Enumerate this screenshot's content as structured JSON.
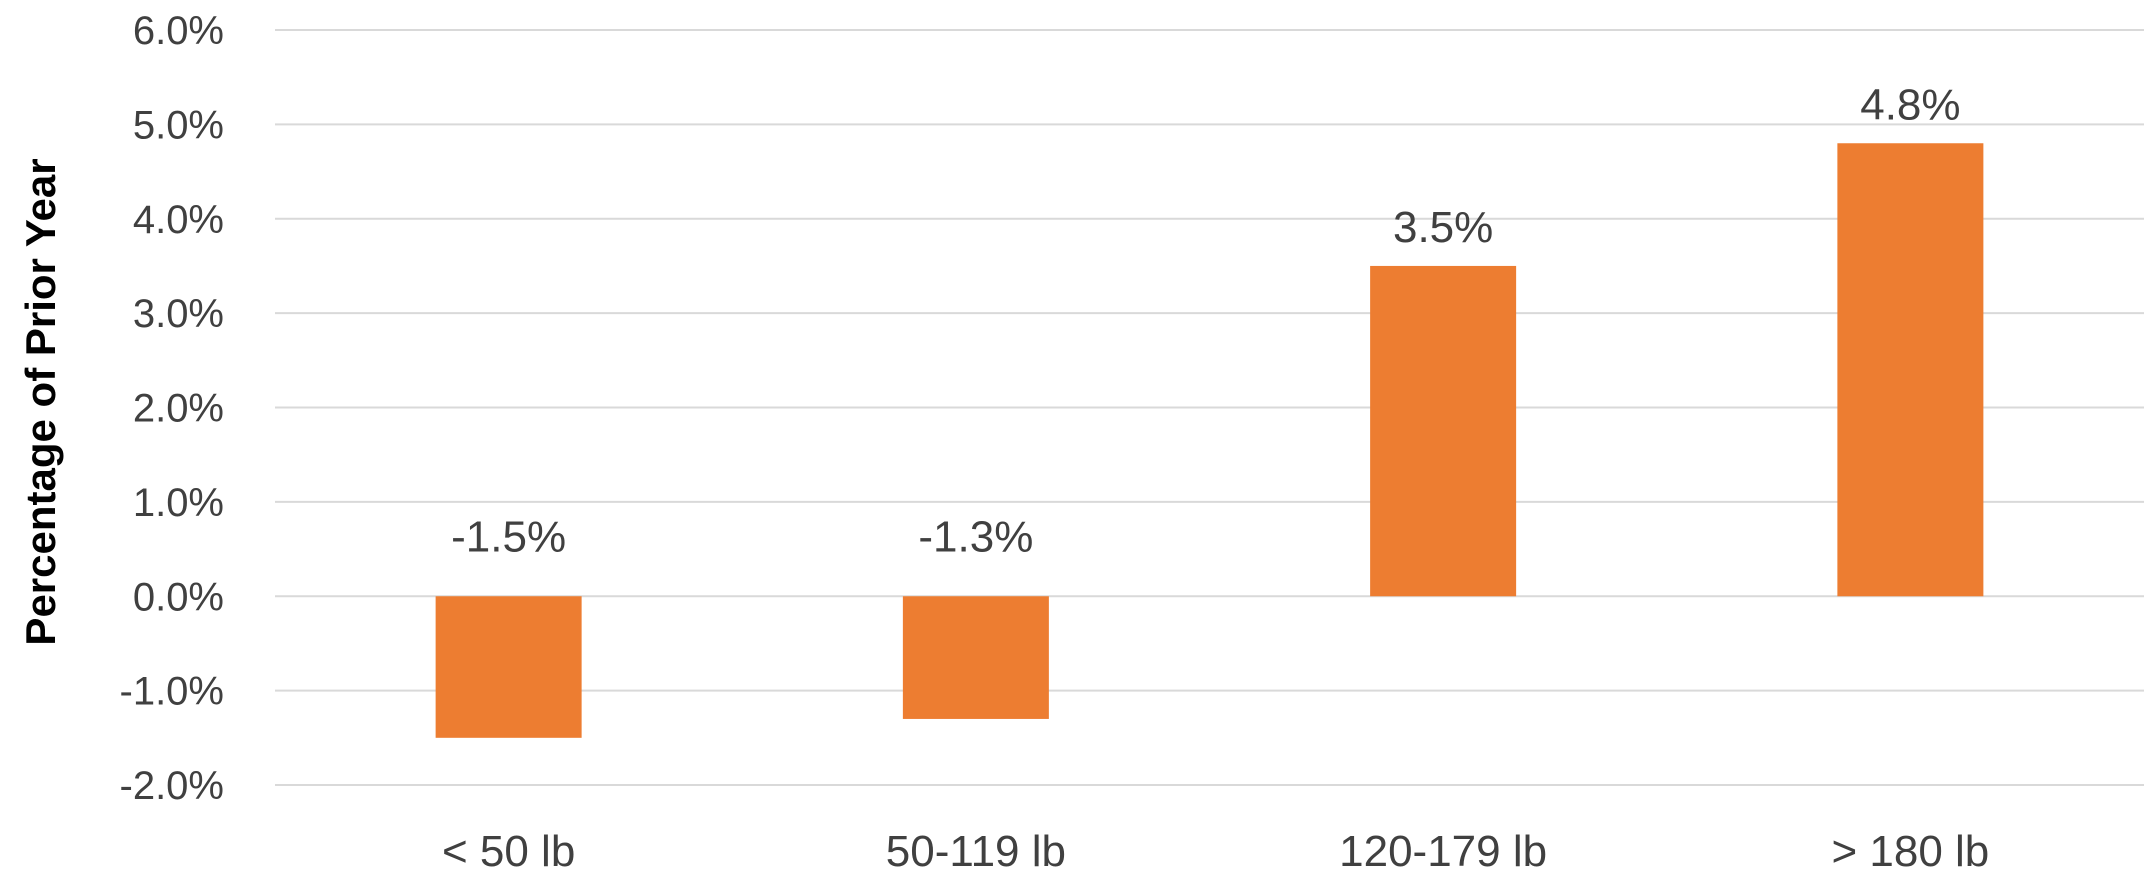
{
  "chart_data": {
    "type": "bar",
    "categories": [
      "< 50 lb",
      "50-119 lb",
      "120-179 lb",
      "> 180 lb"
    ],
    "values": [
      -1.5,
      -1.3,
      3.5,
      4.8
    ],
    "data_labels": [
      "-1.5%",
      "-1.3%",
      "3.5%",
      "4.8%"
    ],
    "title": "",
    "xlabel": "",
    "ylabel": "Percentage of Prior Year",
    "ylim": [
      -2.0,
      6.0
    ],
    "yticks": [
      -2.0,
      -1.0,
      0.0,
      1.0,
      2.0,
      3.0,
      4.0,
      5.0,
      6.0
    ],
    "ytick_labels": [
      "-2.0%",
      "-1.0%",
      "0.0%",
      "1.0%",
      "2.0%",
      "3.0%",
      "4.0%",
      "5.0%",
      "6.0%"
    ],
    "grid": true,
    "legend": "none",
    "bar_color": "#ED7D31",
    "grid_color": "#D9D9D9",
    "text_color": "#404040"
  }
}
